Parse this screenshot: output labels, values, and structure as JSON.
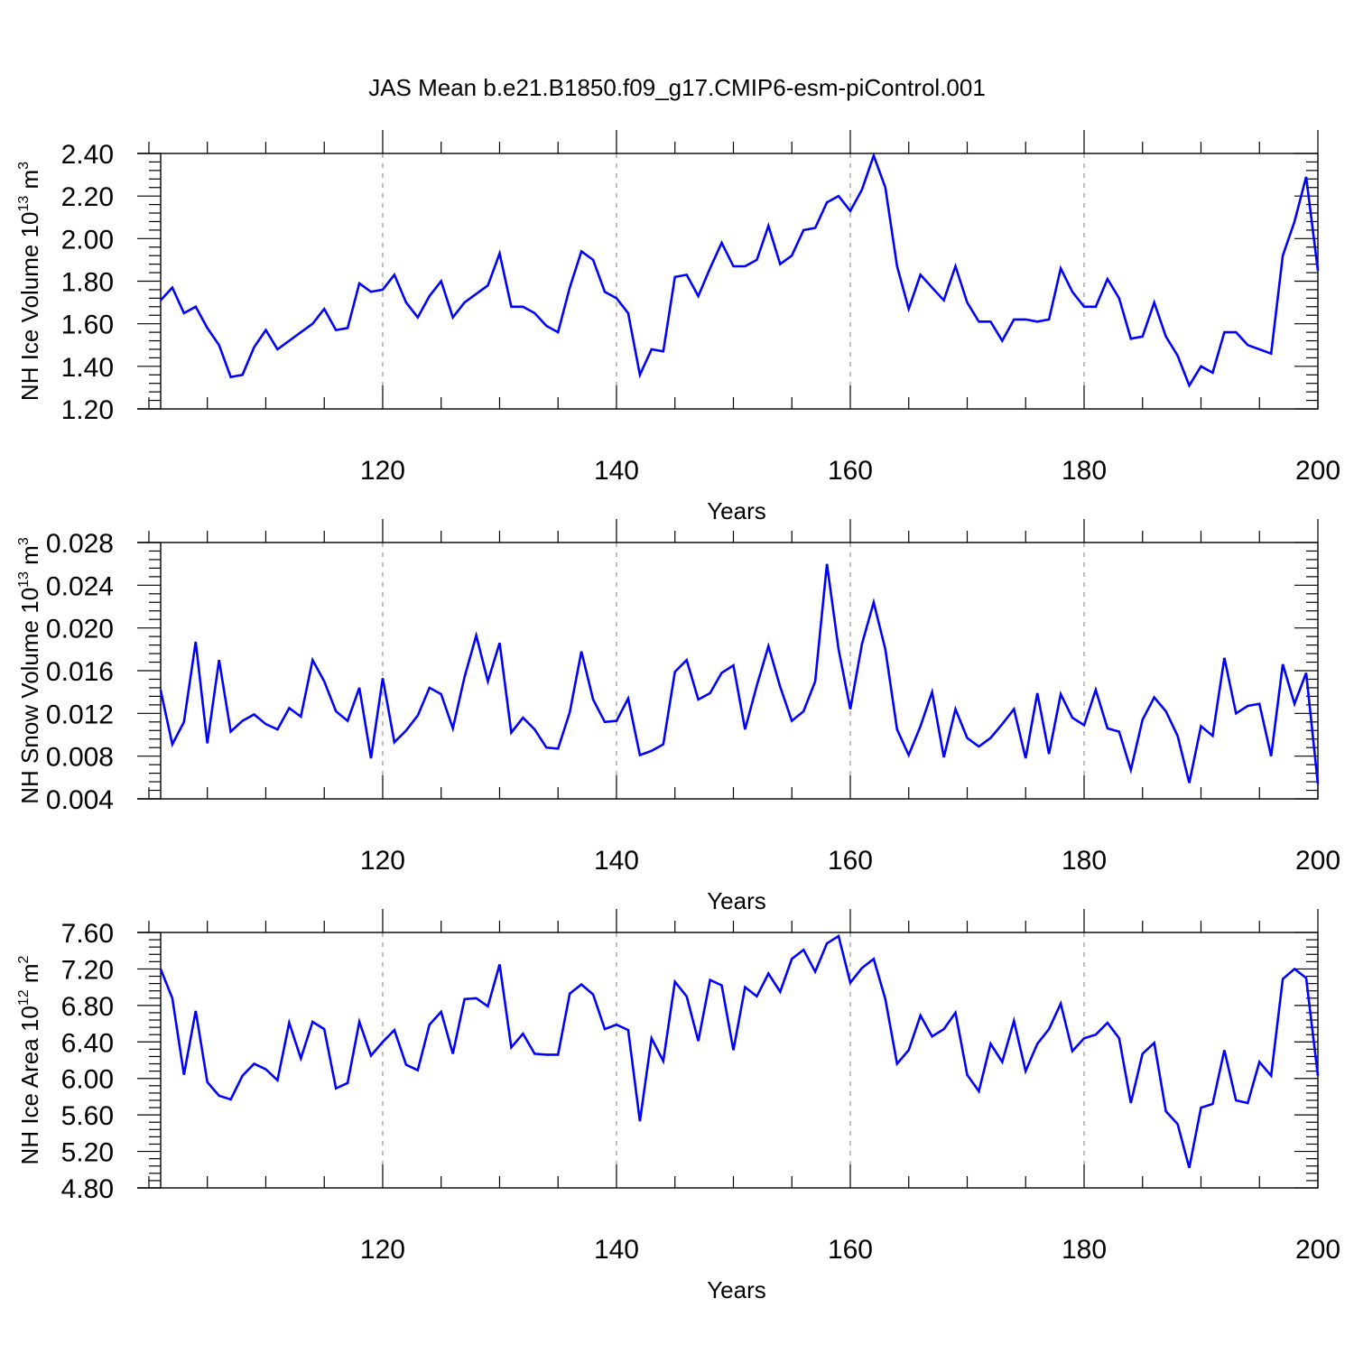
{
  "title": "JAS Mean b.e21.B1850.f09_g17.CMIP6-esm-piControl.001",
  "colors": {
    "series": "#0000ff",
    "axis": "#000000",
    "grid": "#808080"
  },
  "chart_data": [
    {
      "type": "line",
      "ylabel": {
        "main": "NH Ice Volume 10",
        "sup1": "13",
        "mid": " m",
        "sup2": "3"
      },
      "xlabel": "Years",
      "xlim": [
        101,
        200
      ],
      "ylim": [
        1.2,
        2.4
      ],
      "yticks": [
        1.2,
        1.4,
        1.6,
        1.8,
        2.0,
        2.2,
        2.4
      ],
      "ytick_labels": [
        "1.20",
        "1.40",
        "1.60",
        "1.80",
        "2.00",
        "2.20",
        "2.40"
      ],
      "yminor": 0.04,
      "xticks": [
        120,
        140,
        160,
        180,
        200
      ],
      "xtick_labels": [
        "120",
        "140",
        "160",
        "180",
        "200"
      ],
      "grid": "vertical dashed at major x ticks",
      "series": [
        {
          "values": [
            1.71,
            1.77,
            1.65,
            1.68,
            1.58,
            1.5,
            1.35,
            1.36,
            1.49,
            1.57,
            1.48,
            1.52,
            1.56,
            1.6,
            1.67,
            1.57,
            1.58,
            1.79,
            1.75,
            1.76,
            1.83,
            1.7,
            1.63,
            1.73,
            1.8,
            1.63,
            1.7,
            1.74,
            1.78,
            1.93,
            1.68,
            1.68,
            1.65,
            1.59,
            1.56,
            1.77,
            1.94,
            1.9,
            1.75,
            1.72,
            1.65,
            1.36,
            1.48,
            1.47,
            1.82,
            1.83,
            1.73,
            1.86,
            1.98,
            1.87,
            1.87,
            1.9,
            2.06,
            1.88,
            1.92,
            2.04,
            2.05,
            2.17,
            2.2,
            2.13,
            2.23,
            2.39,
            2.24,
            1.87,
            1.67,
            1.83,
            1.77,
            1.71,
            1.87,
            1.7,
            1.61,
            1.61,
            1.52,
            1.62,
            1.62,
            1.61,
            1.62,
            1.86,
            1.75,
            1.68,
            1.68,
            1.81,
            1.72,
            1.53,
            1.54,
            1.7,
            1.54,
            1.45,
            1.31,
            1.4,
            1.37,
            1.56,
            1.56,
            1.5,
            1.48,
            1.46,
            1.92,
            2.08,
            2.29,
            1.85
          ]
        }
      ]
    },
    {
      "type": "line",
      "ylabel": {
        "main": "NH Snow Volume 10",
        "sup1": "13",
        "mid": " m",
        "sup2": "3"
      },
      "xlabel": "Years",
      "xlim": [
        101,
        200
      ],
      "ylim": [
        0.004,
        0.028
      ],
      "yticks": [
        0.004,
        0.008,
        0.012,
        0.016,
        0.02,
        0.024,
        0.028
      ],
      "ytick_labels": [
        "0.004",
        "0.008",
        "0.012",
        "0.016",
        "0.020",
        "0.024",
        "0.028"
      ],
      "yminor": 0.0008,
      "xticks": [
        120,
        140,
        160,
        180,
        200
      ],
      "xtick_labels": [
        "120",
        "140",
        "160",
        "180",
        "200"
      ],
      "grid": "vertical dashed at major x ticks",
      "series": [
        {
          "values": [
            0.0142,
            0.0091,
            0.0112,
            0.0187,
            0.0092,
            0.017,
            0.0103,
            0.0113,
            0.0119,
            0.011,
            0.0105,
            0.0125,
            0.0117,
            0.017,
            0.015,
            0.0122,
            0.0113,
            0.0144,
            0.0078,
            0.0153,
            0.0093,
            0.0104,
            0.0118,
            0.0144,
            0.0138,
            0.0106,
            0.0154,
            0.0193,
            0.015,
            0.0186,
            0.0102,
            0.0116,
            0.0105,
            0.0088,
            0.0087,
            0.0121,
            0.0178,
            0.0133,
            0.0112,
            0.0113,
            0.0134,
            0.0081,
            0.0085,
            0.0091,
            0.0159,
            0.017,
            0.0133,
            0.0139,
            0.0158,
            0.0165,
            0.0105,
            0.0146,
            0.0183,
            0.0145,
            0.0113,
            0.0122,
            0.015,
            0.026,
            0.018,
            0.0124,
            0.0185,
            0.0224,
            0.018,
            0.0105,
            0.0081,
            0.0108,
            0.014,
            0.0079,
            0.0124,
            0.0097,
            0.0089,
            0.0097,
            0.011,
            0.0124,
            0.0078,
            0.0139,
            0.0082,
            0.0138,
            0.0116,
            0.0109,
            0.0142,
            0.0106,
            0.0103,
            0.0067,
            0.0114,
            0.0135,
            0.0122,
            0.0099,
            0.0055,
            0.0108,
            0.0099,
            0.0172,
            0.012,
            0.0127,
            0.0129,
            0.008,
            0.0166,
            0.0129,
            0.0158,
            0.0054
          ]
        }
      ]
    },
    {
      "type": "line",
      "ylabel": {
        "main": "NH Ice Area 10",
        "sup1": "12",
        "mid": " m",
        "sup2": "2"
      },
      "xlabel": "Years",
      "xlim": [
        101,
        200
      ],
      "ylim": [
        4.8,
        7.6
      ],
      "yticks": [
        4.8,
        5.2,
        5.6,
        6.0,
        6.4,
        6.8,
        7.2,
        7.6
      ],
      "ytick_labels": [
        "4.80",
        "5.20",
        "5.60",
        "6.00",
        "6.40",
        "6.80",
        "7.20",
        "7.60"
      ],
      "yminor": 0.08,
      "xticks": [
        120,
        140,
        160,
        180,
        200
      ],
      "xtick_labels": [
        "120",
        "140",
        "160",
        "180",
        "200"
      ],
      "grid": "vertical dashed at major x ticks",
      "series": [
        {
          "values": [
            7.2,
            6.88,
            6.04,
            6.74,
            5.96,
            5.81,
            5.77,
            6.03,
            6.16,
            6.1,
            5.98,
            6.61,
            6.22,
            6.62,
            6.54,
            5.89,
            5.95,
            6.62,
            6.25,
            6.4,
            6.53,
            6.15,
            6.09,
            6.59,
            6.73,
            6.27,
            6.87,
            6.88,
            6.79,
            7.25,
            6.34,
            6.49,
            6.27,
            6.26,
            6.26,
            6.93,
            7.03,
            6.92,
            6.54,
            6.59,
            6.53,
            5.53,
            6.44,
            6.19,
            7.06,
            6.9,
            6.41,
            7.08,
            7.02,
            6.31,
            7.0,
            6.9,
            7.15,
            6.95,
            7.31,
            7.41,
            7.17,
            7.48,
            7.56,
            7.05,
            7.21,
            7.31,
            6.87,
            6.16,
            6.31,
            6.69,
            6.46,
            6.54,
            6.72,
            6.04,
            5.86,
            6.38,
            6.18,
            6.63,
            6.08,
            6.38,
            6.54,
            6.82,
            6.3,
            6.44,
            6.48,
            6.61,
            6.44,
            5.73,
            6.27,
            6.39,
            5.64,
            5.5,
            5.02,
            5.68,
            5.72,
            6.31,
            5.76,
            5.73,
            6.18,
            6.03,
            7.09,
            7.2,
            7.1,
            6.03
          ]
        }
      ]
    }
  ]
}
